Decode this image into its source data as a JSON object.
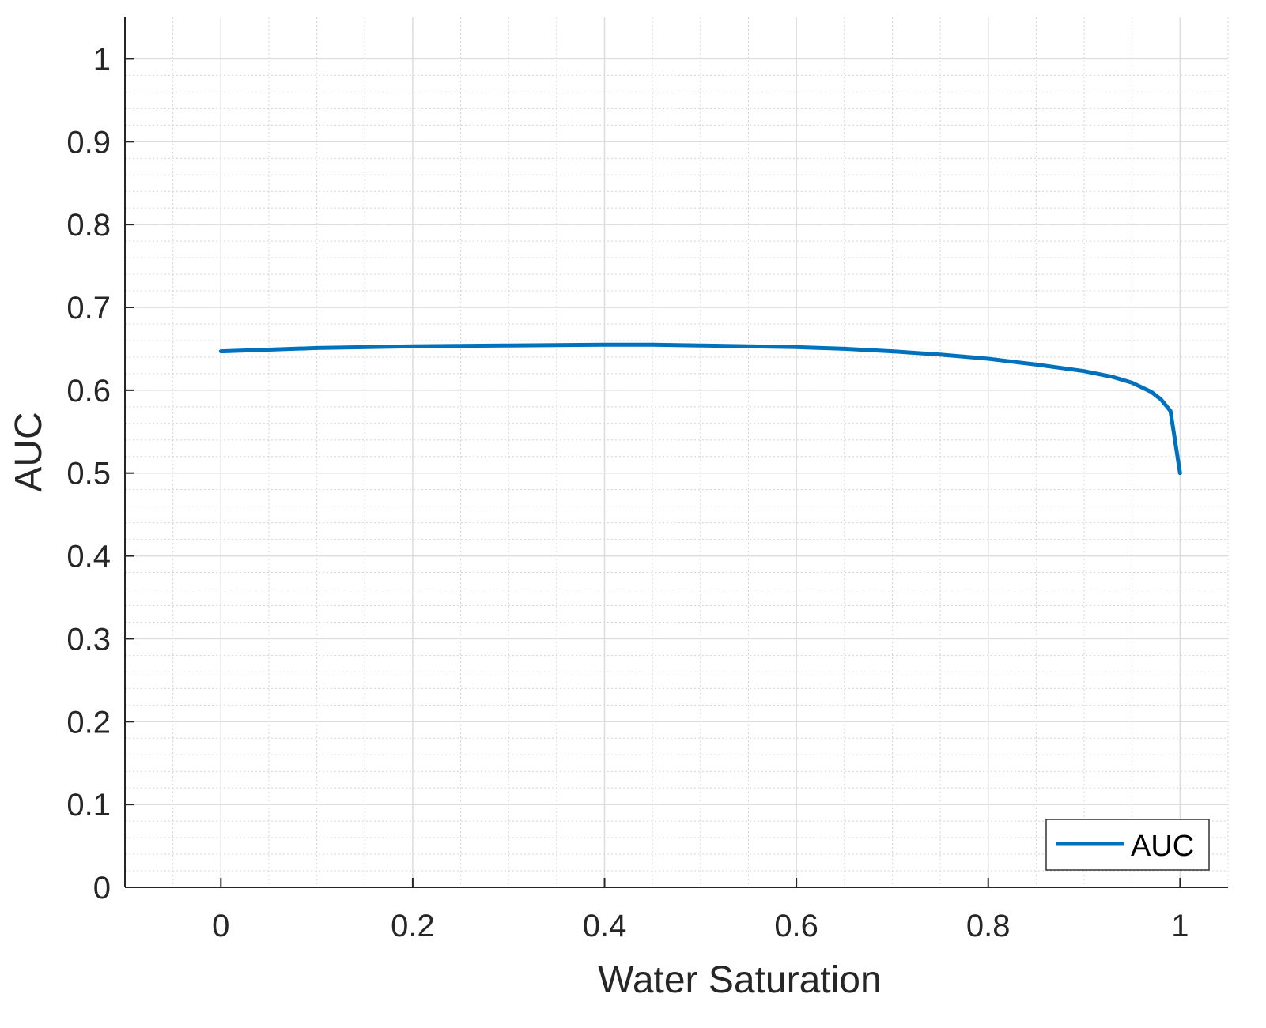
{
  "chart_data": {
    "type": "line",
    "xlabel": "Water Saturation",
    "ylabel": "AUC",
    "xlim": [
      -0.1,
      1.05
    ],
    "ylim": [
      0,
      1.05
    ],
    "x_ticks": [
      0,
      0.2,
      0.4,
      0.6,
      0.8,
      1
    ],
    "x_tick_labels": [
      "0",
      "0.2",
      "0.4",
      "0.6",
      "0.8",
      "1"
    ],
    "y_ticks": [
      0,
      0.1,
      0.2,
      0.3,
      0.4,
      0.5,
      0.6,
      0.7,
      0.8,
      0.9,
      1
    ],
    "y_tick_labels": [
      "0",
      "0.1",
      "0.2",
      "0.3",
      "0.4",
      "0.5",
      "0.6",
      "0.7",
      "0.8",
      "0.9",
      "1"
    ],
    "grid": true,
    "minor_grid": true,
    "legend": {
      "placement": "bottom-right",
      "entries": [
        "AUC"
      ]
    },
    "series": [
      {
        "name": "AUC",
        "color": "#0072BD",
        "x": [
          0,
          0.05,
          0.1,
          0.2,
          0.3,
          0.4,
          0.45,
          0.5,
          0.55,
          0.6,
          0.65,
          0.7,
          0.75,
          0.8,
          0.85,
          0.9,
          0.93,
          0.95,
          0.97,
          0.98,
          0.99,
          1.0
        ],
        "y": [
          0.647,
          0.649,
          0.651,
          0.653,
          0.654,
          0.655,
          0.655,
          0.654,
          0.653,
          0.652,
          0.65,
          0.647,
          0.643,
          0.638,
          0.631,
          0.623,
          0.616,
          0.609,
          0.598,
          0.589,
          0.575,
          0.5
        ]
      }
    ]
  }
}
